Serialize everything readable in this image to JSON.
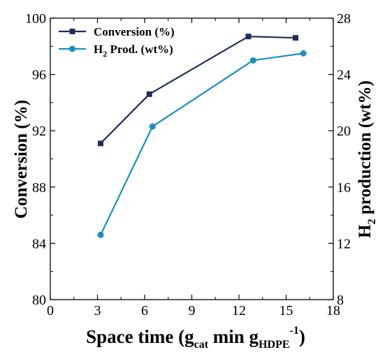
{
  "chart_data": {
    "type": "line",
    "x_axis": {
      "range": [
        0,
        18
      ],
      "ticks": [
        "0",
        "3",
        "6",
        "9",
        "12",
        "15",
        "18"
      ],
      "label": {
        "base": "Space time (g",
        "sub1": "cat",
        "mid": " min g",
        "sub2": "HDPE",
        "sup": "-1",
        "end": ")"
      }
    },
    "y_left_axis": {
      "range": [
        80,
        100
      ],
      "ticks": [
        "80",
        "84",
        "88",
        "92",
        "96",
        "100"
      ],
      "label": "Conversion (%)"
    },
    "y_right_axis": {
      "range": [
        8,
        28
      ],
      "ticks": [
        "8",
        "12",
        "16",
        "20",
        "24",
        "28"
      ],
      "label": {
        "pre": "H",
        "sub": "2",
        "post": " production (wt%)"
      }
    },
    "series": [
      {
        "name": "Conversion (%)",
        "axis": "left",
        "color": "#1f2d5a",
        "marker": "square",
        "x": [
          3.2,
          6.3,
          12.6,
          15.6
        ],
        "y": [
          91.1,
          94.6,
          98.7,
          98.6
        ]
      },
      {
        "name_pre": "H",
        "name_sub": "2",
        "name_post": " Prod. (wt%)",
        "axis": "right",
        "color": "#1a8fbd",
        "marker": "circle",
        "x": [
          3.2,
          6.5,
          12.9,
          16.1
        ],
        "y": [
          12.6,
          20.3,
          25.0,
          25.5
        ]
      }
    ],
    "legend": {
      "placement": "top-left",
      "entries": [
        {
          "text": "Conversion (%)"
        },
        {
          "pre": "H",
          "sub": "2",
          "post": " Prod. (wt%)"
        }
      ]
    },
    "grid": false
  }
}
